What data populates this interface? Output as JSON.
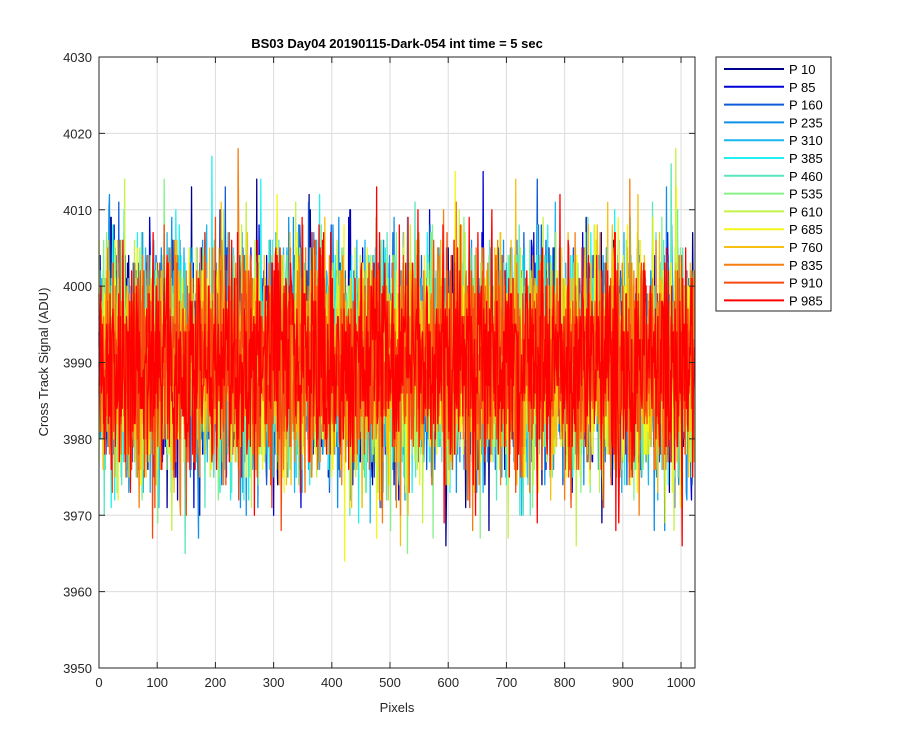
{
  "chart_data": {
    "type": "line",
    "title": "BS03 Day04 20190115-Dark-054 int time = 5 sec",
    "xlabel": "Pixels",
    "ylabel": "Cross Track Signal (ADU)",
    "xlim": [
      0,
      1024
    ],
    "ylim": [
      3950,
      4030
    ],
    "xticks": [
      0,
      100,
      200,
      300,
      400,
      500,
      600,
      700,
      800,
      900,
      1000
    ],
    "yticks": [
      3950,
      3960,
      3970,
      3980,
      3990,
      4000,
      4010,
      4020,
      4030
    ],
    "grid": true,
    "legend_position": "outside-right",
    "n_pixels": 1024,
    "series": [
      {
        "name": "P 10",
        "color": "#00008f",
        "mean": 3990,
        "spread": 7.2
      },
      {
        "name": "P 85",
        "color": "#0000d9",
        "mean": 3990,
        "spread": 7.2
      },
      {
        "name": "P 160",
        "color": "#0f5bd7",
        "mean": 3990,
        "spread": 7.2
      },
      {
        "name": "P 235",
        "color": "#1090e8",
        "mean": 3990,
        "spread": 7.2
      },
      {
        "name": "P 310",
        "color": "#19b6ef",
        "mean": 3990,
        "spread": 7.2
      },
      {
        "name": "P 385",
        "color": "#22f0f0",
        "mean": 3990,
        "spread": 7.2
      },
      {
        "name": "P 460",
        "color": "#5ae6bf",
        "mean": 3990,
        "spread": 7.2
      },
      {
        "name": "P 535",
        "color": "#88f08a",
        "mean": 3990,
        "spread": 7.2
      },
      {
        "name": "P 610",
        "color": "#c4f246",
        "mean": 3990,
        "spread": 7.2
      },
      {
        "name": "P 685",
        "color": "#f5f51a",
        "mean": 3990,
        "spread": 7.2
      },
      {
        "name": "P 760",
        "color": "#f5c010",
        "mean": 3990,
        "spread": 7.2
      },
      {
        "name": "P 835",
        "color": "#f57f10",
        "mean": 3990,
        "spread": 7.2
      },
      {
        "name": "P 910",
        "color": "#f54a10",
        "mean": 3990,
        "spread": 7.2
      },
      {
        "name": "P 985",
        "color": "#ff0000",
        "mean": 3990,
        "spread": 7.2
      }
    ]
  }
}
